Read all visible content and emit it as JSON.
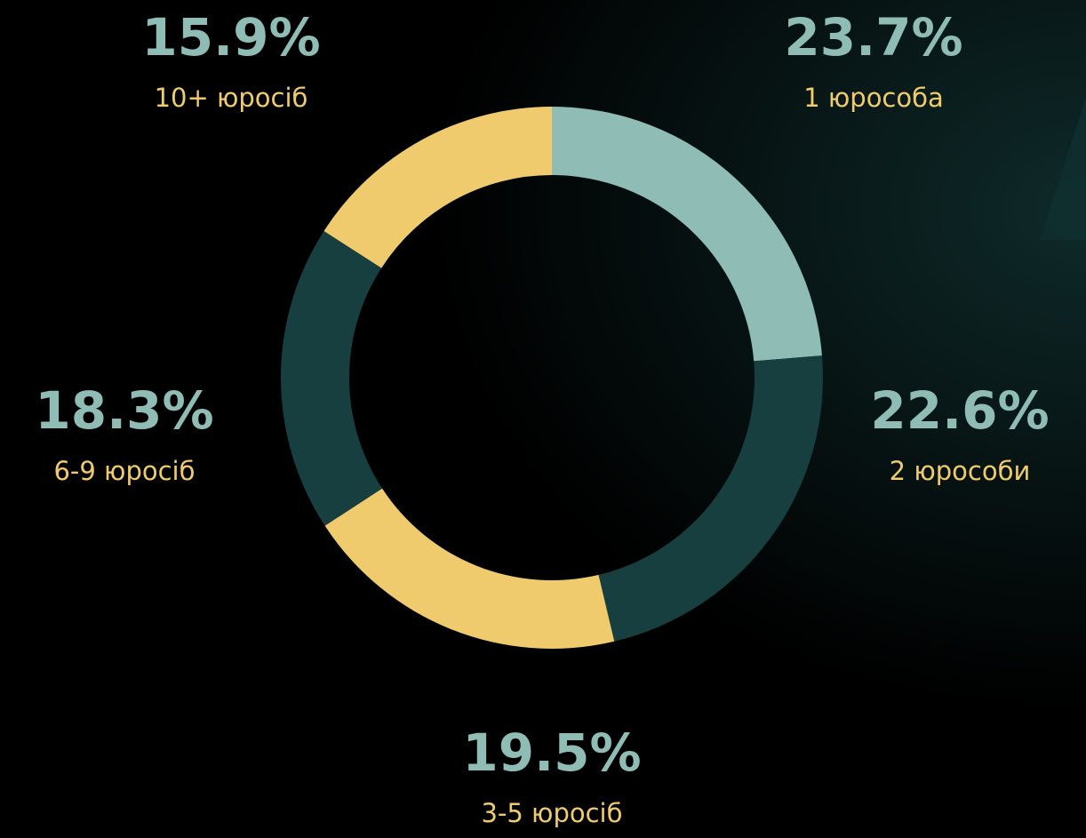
{
  "chart_data": {
    "type": "donut",
    "categories": [
      "1 юрособа",
      "2 юрособи",
      "3-5 юросіб",
      "6-9 юросіб",
      "10+ юросіб"
    ],
    "values": [
      23.7,
      22.6,
      19.5,
      18.3,
      15.9
    ],
    "value_labels": [
      "23.7%",
      "22.6%",
      "19.5%",
      "18.3%",
      "15.9%"
    ],
    "colors": [
      "#8fbcb5",
      "#173f3f",
      "#f0cb6e",
      "#173f3f",
      "#f0cb6e"
    ]
  }
}
